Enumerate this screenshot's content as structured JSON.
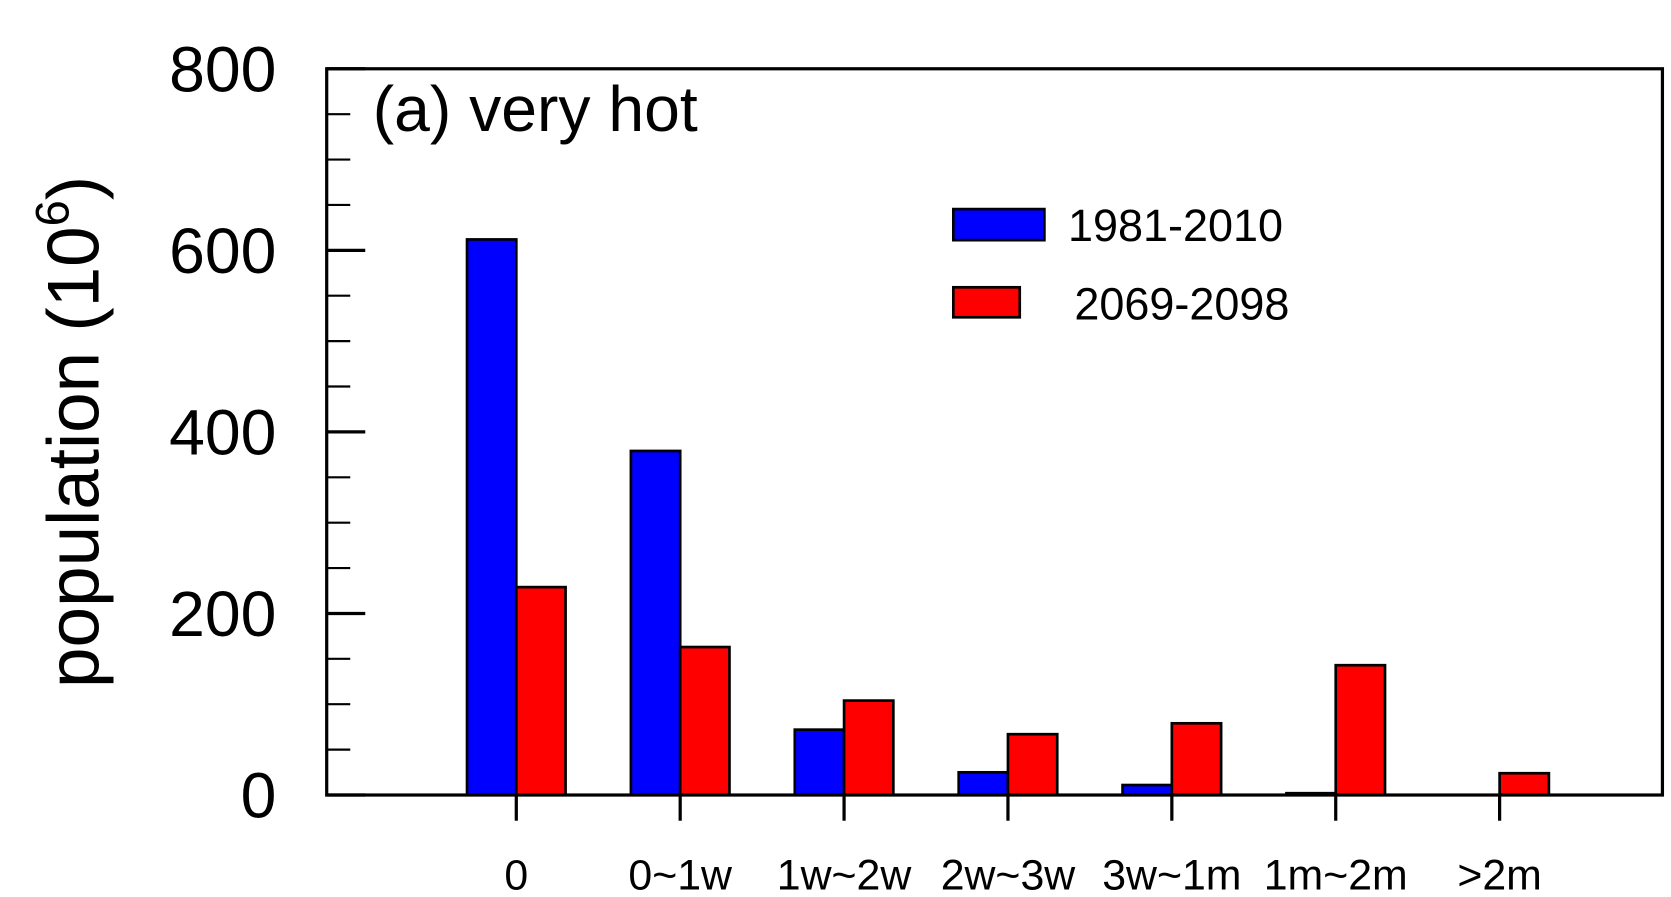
{
  "chart_data": {
    "type": "bar",
    "title": "(a) very hot",
    "xlabel": "",
    "ylabel": "population (10",
    "ylabel_superscript": "6",
    "ylabel_close": ")",
    "ylim": [
      0,
      800
    ],
    "yticks": [
      0,
      200,
      400,
      600,
      800
    ],
    "ytick_labels": [
      "0",
      "200",
      "400",
      "600",
      "800"
    ],
    "categories": [
      "0",
      "0~1w",
      "1w~2w",
      "2w~3w",
      "3w~1m",
      "1m~2m",
      ">2m"
    ],
    "series": [
      {
        "name": "1981-2010",
        "color": "#0000ff",
        "values": [
          612,
          379,
          72,
          25,
          11,
          2,
          0
        ]
      },
      {
        "name": "2069-2098",
        "color": "#ff0000",
        "values": [
          229,
          163,
          104,
          67,
          79,
          143,
          24
        ]
      }
    ],
    "legend_position": "top-right",
    "grid": false
  }
}
